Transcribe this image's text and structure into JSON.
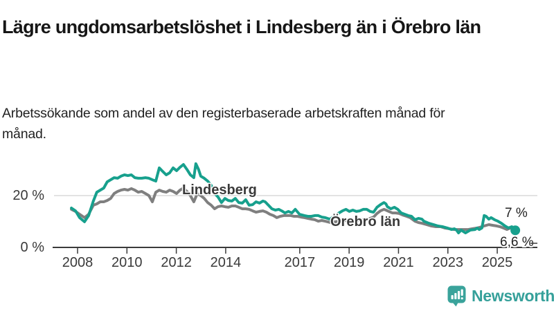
{
  "title": "Lägre ungdomsarbetslöshet i Lindesberg än i Örebro län",
  "subtitle": "Arbetssökande som andel av den registerbaserade arbetskraften månad för månad.",
  "colors": {
    "lindesberg": "#17a08d",
    "orebro_line": "#7f7f7f",
    "orebro_label": "#8a8a8a",
    "axis": "#3a3a3a",
    "grid": "#d9d9d9",
    "annotation": "#222222",
    "logo": "#35a09a"
  },
  "logo": {
    "text": "Newsworthy",
    "icon": "speech-bubble-bar-chart-icon"
  },
  "chart_data": {
    "type": "line",
    "unit": "%",
    "xlim": [
      2007.7,
      2025.9
    ],
    "ylim": [
      0,
      36
    ],
    "grid": "horizontal gridline at 20 % only",
    "legend": "inline series labels on chart",
    "x_ticks": [
      2008,
      2010,
      2012,
      2014,
      2017,
      2019,
      2021,
      2023,
      2025
    ],
    "y_ticks": [
      {
        "value": 20,
        "label": "20 %"
      },
      {
        "value": 0,
        "label": "0 %"
      }
    ],
    "series": [
      {
        "name": "Örebro län",
        "color": "#7f7f7f",
        "final_label": "7 %",
        "points": [
          [
            2007.75,
            14.7
          ],
          [
            2007.92,
            13.9
          ],
          [
            2008.08,
            12.8
          ],
          [
            2008.28,
            11.5
          ],
          [
            2008.45,
            12.8
          ],
          [
            2008.64,
            16.3
          ],
          [
            2008.78,
            16.8
          ],
          [
            2008.92,
            17.6
          ],
          [
            2009.06,
            17.6
          ],
          [
            2009.2,
            18.1
          ],
          [
            2009.34,
            18.9
          ],
          [
            2009.48,
            20.8
          ],
          [
            2009.62,
            21.6
          ],
          [
            2009.76,
            22.1
          ],
          [
            2009.9,
            22.4
          ],
          [
            2010.04,
            22.1
          ],
          [
            2010.18,
            22.7
          ],
          [
            2010.32,
            22.1
          ],
          [
            2010.46,
            21.3
          ],
          [
            2010.6,
            21.6
          ],
          [
            2010.75,
            20.8
          ],
          [
            2010.89,
            20
          ],
          [
            2011.03,
            17.6
          ],
          [
            2011.17,
            21.3
          ],
          [
            2011.31,
            22.1
          ],
          [
            2011.45,
            21.6
          ],
          [
            2011.59,
            21.3
          ],
          [
            2011.73,
            22.1
          ],
          [
            2011.87,
            21.6
          ],
          [
            2012.01,
            20.8
          ],
          [
            2012.15,
            22.1
          ],
          [
            2012.29,
            22.9
          ],
          [
            2012.43,
            21.6
          ],
          [
            2012.57,
            20
          ],
          [
            2012.71,
            17.6
          ],
          [
            2012.85,
            20.8
          ],
          [
            2012.99,
            20
          ],
          [
            2013.13,
            18.9
          ],
          [
            2013.27,
            17.3
          ],
          [
            2013.41,
            16.3
          ],
          [
            2013.55,
            14.9
          ],
          [
            2013.69,
            15.7
          ],
          [
            2013.83,
            16
          ],
          [
            2013.97,
            15.7
          ],
          [
            2014.11,
            15.5
          ],
          [
            2014.25,
            16
          ],
          [
            2014.39,
            16
          ],
          [
            2014.53,
            15.5
          ],
          [
            2014.67,
            14.9
          ],
          [
            2014.81,
            14.9
          ],
          [
            2014.95,
            14.7
          ],
          [
            2015.09,
            14.1
          ],
          [
            2015.23,
            13.6
          ],
          [
            2015.37,
            13.9
          ],
          [
            2015.51,
            14.1
          ],
          [
            2015.65,
            13.6
          ],
          [
            2015.79,
            12.8
          ],
          [
            2015.93,
            12.3
          ],
          [
            2016.07,
            11.5
          ],
          [
            2016.21,
            12
          ],
          [
            2016.35,
            12.3
          ],
          [
            2016.49,
            12.3
          ],
          [
            2016.63,
            12.3
          ],
          [
            2016.77,
            12
          ],
          [
            2016.91,
            12
          ],
          [
            2017.05,
            11.7
          ],
          [
            2017.19,
            11.5
          ],
          [
            2017.33,
            11.2
          ],
          [
            2017.47,
            10.9
          ],
          [
            2017.61,
            10.7
          ],
          [
            2017.75,
            10.1
          ],
          [
            2017.89,
            10.4
          ],
          [
            2018.03,
            10.1
          ],
          [
            2018.25,
            9.6
          ],
          [
            2018.45,
            9.9
          ],
          [
            2018.59,
            10.1
          ],
          [
            2018.73,
            10.1
          ],
          [
            2018.87,
            10.4
          ],
          [
            2019.01,
            10.1
          ],
          [
            2019.15,
            10.1
          ],
          [
            2019.29,
            10.4
          ],
          [
            2019.43,
            10.7
          ],
          [
            2019.57,
            10.7
          ],
          [
            2019.71,
            10.9
          ],
          [
            2019.85,
            11.2
          ],
          [
            2019.99,
            11.7
          ],
          [
            2020.13,
            13.1
          ],
          [
            2020.27,
            14.1
          ],
          [
            2020.41,
            14.7
          ],
          [
            2020.49,
            14.4
          ],
          [
            2020.61,
            13.9
          ],
          [
            2020.75,
            13.3
          ],
          [
            2020.89,
            13.3
          ],
          [
            2021.03,
            13.1
          ],
          [
            2021.17,
            12.5
          ],
          [
            2021.33,
            12
          ],
          [
            2021.47,
            11.5
          ],
          [
            2021.67,
            10.1
          ],
          [
            2021.81,
            9.6
          ],
          [
            2021.95,
            9.3
          ],
          [
            2022.14,
            8.8
          ],
          [
            2022.31,
            8.3
          ],
          [
            2022.51,
            8
          ],
          [
            2022.7,
            8
          ],
          [
            2022.87,
            7.5
          ],
          [
            2023.07,
            7.2
          ],
          [
            2023.26,
            6.9
          ],
          [
            2023.43,
            6.9
          ],
          [
            2023.63,
            6.9
          ],
          [
            2023.82,
            6.9
          ],
          [
            2023.99,
            7.2
          ],
          [
            2024.19,
            7.5
          ],
          [
            2024.38,
            8
          ],
          [
            2024.47,
            8.3
          ],
          [
            2024.66,
            8.8
          ],
          [
            2024.83,
            8.5
          ],
          [
            2024.97,
            8.3
          ],
          [
            2025.11,
            8
          ],
          [
            2025.25,
            7.5
          ],
          [
            2025.39,
            6.9
          ],
          [
            2025.53,
            7.5
          ],
          [
            2025.73,
            7
          ]
        ]
      },
      {
        "name": "Lindesberg",
        "color": "#17a08d",
        "final_label": "6,6 %",
        "points": [
          [
            2007.75,
            15.2
          ],
          [
            2007.92,
            14.1
          ],
          [
            2008.08,
            11.5
          ],
          [
            2008.28,
            9.9
          ],
          [
            2008.45,
            12.3
          ],
          [
            2008.64,
            17.9
          ],
          [
            2008.78,
            21.3
          ],
          [
            2008.92,
            22.1
          ],
          [
            2009.06,
            22.9
          ],
          [
            2009.2,
            25.3
          ],
          [
            2009.34,
            26.1
          ],
          [
            2009.48,
            26.9
          ],
          [
            2009.62,
            26.7
          ],
          [
            2009.76,
            27.5
          ],
          [
            2009.9,
            28
          ],
          [
            2010.04,
            27.7
          ],
          [
            2010.18,
            28
          ],
          [
            2010.32,
            26.9
          ],
          [
            2010.46,
            26.7
          ],
          [
            2010.6,
            26.7
          ],
          [
            2010.75,
            26.9
          ],
          [
            2010.89,
            26.7
          ],
          [
            2011.03,
            26.1
          ],
          [
            2011.17,
            25.6
          ],
          [
            2011.31,
            30.7
          ],
          [
            2011.45,
            29.3
          ],
          [
            2011.59,
            28
          ],
          [
            2011.73,
            28.8
          ],
          [
            2011.87,
            30.7
          ],
          [
            2012.01,
            29.6
          ],
          [
            2012.15,
            30.9
          ],
          [
            2012.29,
            32
          ],
          [
            2012.43,
            30.1
          ],
          [
            2012.57,
            28
          ],
          [
            2012.71,
            26.9
          ],
          [
            2012.79,
            32.3
          ],
          [
            2012.9,
            30.1
          ],
          [
            2012.99,
            27.5
          ],
          [
            2013.13,
            26.7
          ],
          [
            2013.27,
            25.6
          ],
          [
            2013.41,
            24
          ],
          [
            2013.55,
            20.8
          ],
          [
            2013.69,
            19.5
          ],
          [
            2013.83,
            17.3
          ],
          [
            2013.97,
            18.9
          ],
          [
            2014.11,
            18.1
          ],
          [
            2014.25,
            17.9
          ],
          [
            2014.39,
            18.9
          ],
          [
            2014.53,
            17.3
          ],
          [
            2014.67,
            17.1
          ],
          [
            2014.81,
            18.4
          ],
          [
            2014.95,
            16.3
          ],
          [
            2015.09,
            16.5
          ],
          [
            2015.23,
            17.6
          ],
          [
            2015.37,
            17.1
          ],
          [
            2015.51,
            17.9
          ],
          [
            2015.6,
            17.6
          ],
          [
            2015.73,
            16.3
          ],
          [
            2015.87,
            14.9
          ],
          [
            2016.01,
            14.4
          ],
          [
            2016.15,
            14.7
          ],
          [
            2016.27,
            14.1
          ],
          [
            2016.4,
            13.3
          ],
          [
            2016.54,
            13.9
          ],
          [
            2016.68,
            13.3
          ],
          [
            2016.82,
            14.7
          ],
          [
            2016.99,
            12.8
          ],
          [
            2017.19,
            12.3
          ],
          [
            2017.33,
            12
          ],
          [
            2017.47,
            12
          ],
          [
            2017.61,
            12.3
          ],
          [
            2017.75,
            12.3
          ],
          [
            2017.89,
            11.7
          ],
          [
            2018.03,
            11.5
          ],
          [
            2018.22,
            10.9
          ],
          [
            2018.39,
            12
          ],
          [
            2018.59,
            13.3
          ],
          [
            2018.73,
            14.1
          ],
          [
            2018.87,
            14.7
          ],
          [
            2019.01,
            13.9
          ],
          [
            2019.15,
            14.4
          ],
          [
            2019.29,
            13.9
          ],
          [
            2019.43,
            14.1
          ],
          [
            2019.57,
            14.7
          ],
          [
            2019.71,
            14.7
          ],
          [
            2019.85,
            13.9
          ],
          [
            2019.99,
            13.6
          ],
          [
            2020.13,
            15.5
          ],
          [
            2020.27,
            16.5
          ],
          [
            2020.41,
            17.3
          ],
          [
            2020.49,
            16.8
          ],
          [
            2020.55,
            15.7
          ],
          [
            2020.69,
            14.9
          ],
          [
            2020.83,
            15.5
          ],
          [
            2020.97,
            14.7
          ],
          [
            2021.11,
            13.3
          ],
          [
            2021.25,
            12.8
          ],
          [
            2021.39,
            12.3
          ],
          [
            2021.53,
            12
          ],
          [
            2021.67,
            10.7
          ],
          [
            2021.81,
            11.2
          ],
          [
            2021.95,
            10.9
          ],
          [
            2022.03,
            10.1
          ],
          [
            2022.23,
            9.3
          ],
          [
            2022.42,
            8.8
          ],
          [
            2022.59,
            8.3
          ],
          [
            2022.79,
            8
          ],
          [
            2022.98,
            7.5
          ],
          [
            2023.15,
            6.9
          ],
          [
            2023.26,
            7.2
          ],
          [
            2023.35,
            6.7
          ],
          [
            2023.43,
            5.6
          ],
          [
            2023.54,
            6.7
          ],
          [
            2023.63,
            6.1
          ],
          [
            2023.71,
            5.6
          ],
          [
            2023.91,
            6.7
          ],
          [
            2024.1,
            6.9
          ],
          [
            2024.19,
            7.5
          ],
          [
            2024.27,
            6.9
          ],
          [
            2024.38,
            7.5
          ],
          [
            2024.47,
            12.3
          ],
          [
            2024.55,
            12
          ],
          [
            2024.66,
            10.9
          ],
          [
            2024.75,
            11.5
          ],
          [
            2024.89,
            10.7
          ],
          [
            2025.03,
            10.1
          ],
          [
            2025.17,
            9.3
          ],
          [
            2025.31,
            8.3
          ],
          [
            2025.45,
            7.5
          ],
          [
            2025.59,
            8
          ],
          [
            2025.73,
            6.6
          ]
        ]
      }
    ]
  }
}
